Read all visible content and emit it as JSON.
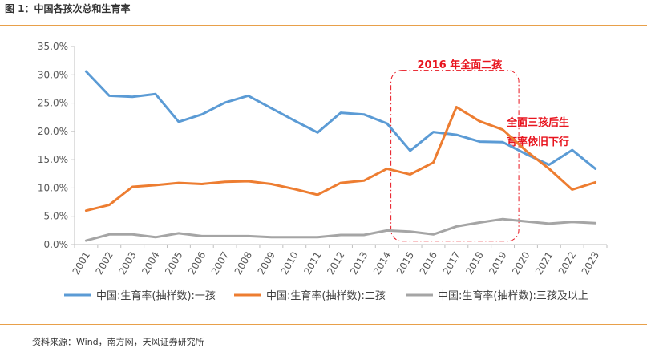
{
  "figure": {
    "title": "图 1：中国各孩次总和生育率",
    "source": "资料来源：Wind，南方网，天风证券研究所"
  },
  "chart_data": {
    "type": "line",
    "x": [
      "2001",
      "2002",
      "2003",
      "2004",
      "2005",
      "2006",
      "2007",
      "2008",
      "2009",
      "2010",
      "2011",
      "2012",
      "2013",
      "2014",
      "2015",
      "2016",
      "2017",
      "2018",
      "2019",
      "2020",
      "2021",
      "2022",
      "2023"
    ],
    "yticks": [
      "0.0%",
      "5.0%",
      "10.0%",
      "15.0%",
      "20.0%",
      "25.0%",
      "30.0%",
      "35.0%"
    ],
    "ylim": [
      0,
      35
    ],
    "series": [
      {
        "name": "中国:生育率(抽样数):一孩",
        "color": "#5b9bd5",
        "values": [
          30.6,
          26.3,
          26.1,
          26.6,
          21.7,
          23.0,
          25.1,
          26.3,
          24.1,
          21.9,
          19.8,
          23.3,
          23.0,
          21.4,
          16.6,
          19.9,
          19.4,
          18.2,
          18.1,
          16.0,
          14.1,
          16.7,
          13.4
        ]
      },
      {
        "name": "中国:生育率(抽样数):二孩",
        "color": "#ed7d31",
        "values": [
          6.0,
          7.0,
          10.2,
          10.5,
          10.9,
          10.7,
          11.1,
          11.2,
          10.7,
          9.8,
          8.8,
          10.9,
          11.3,
          13.4,
          12.4,
          14.5,
          24.3,
          21.8,
          20.3,
          16.6,
          13.4,
          9.7,
          11.0
        ]
      },
      {
        "name": "中国:生育率(抽样数):三孩及以上",
        "color": "#a5a5a5",
        "values": [
          0.7,
          1.8,
          1.8,
          1.3,
          2.0,
          1.5,
          1.5,
          1.5,
          1.3,
          1.3,
          1.3,
          1.7,
          1.7,
          2.5,
          2.3,
          1.8,
          3.2,
          3.9,
          4.5,
          4.1,
          3.7,
          4.0,
          3.8
        ]
      }
    ],
    "grid": false,
    "legend": "bottom",
    "annotations": [
      {
        "text": "2016 年全面二孩",
        "color": "#e8141e"
      },
      {
        "line1": "全面三孩后生",
        "line2": "育率依旧下行",
        "color": "#e8141e"
      }
    ]
  }
}
